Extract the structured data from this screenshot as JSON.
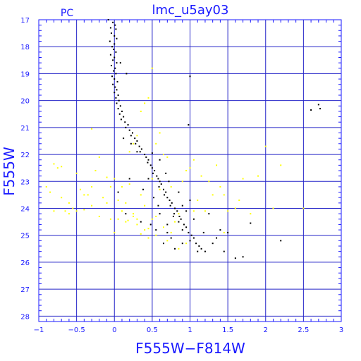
{
  "chart_data": {
    "type": "scatter",
    "title": "lmc_u5ay03",
    "corner_label": "PC",
    "xlabel": "F555W−F814W",
    "ylabel": "F555W",
    "xlim": [
      -1,
      3
    ],
    "ylim": [
      28.2,
      17
    ],
    "y_inverted": true,
    "grid": true,
    "xticks": [
      -1,
      -0.5,
      0,
      0.5,
      1,
      1.5,
      2,
      2.5,
      3
    ],
    "xtick_labels": [
      "−1",
      "−0.5",
      "0",
      "0.5",
      "1",
      "1.5",
      "2",
      "2.5",
      "3"
    ],
    "yticks": [
      17,
      18,
      19,
      20,
      21,
      22,
      23,
      24,
      25,
      26,
      27,
      28
    ],
    "ytick_labels": [
      "17",
      "18",
      "19",
      "20",
      "21",
      "22",
      "23",
      "24",
      "25",
      "26",
      "27",
      "28"
    ],
    "colors": {
      "axes": "#1a1aff",
      "grid": "#2424c8",
      "series_black": "#000000",
      "series_yellow": "#ffff00"
    },
    "series": [
      {
        "color": "#000000",
        "points": [
          [
            -0.08,
            17.0
          ],
          [
            -0.02,
            17.1
          ],
          [
            0.01,
            17.2
          ],
          [
            -0.05,
            17.3
          ],
          [
            0.02,
            17.35
          ],
          [
            -0.04,
            17.5
          ],
          [
            0.0,
            17.6
          ],
          [
            0.03,
            17.7
          ],
          [
            -0.06,
            17.8
          ],
          [
            0.0,
            17.9
          ],
          [
            -0.03,
            18.0
          ],
          [
            -0.01,
            18.1
          ],
          [
            0.02,
            18.2
          ],
          [
            -0.05,
            18.3
          ],
          [
            0.0,
            18.4
          ],
          [
            -0.02,
            18.5
          ],
          [
            0.03,
            18.6
          ],
          [
            -0.04,
            18.7
          ],
          [
            0.01,
            18.8
          ],
          [
            -0.01,
            18.9
          ],
          [
            0.02,
            19.0
          ],
          [
            -0.03,
            19.1
          ],
          [
            0.0,
            19.2
          ],
          [
            0.04,
            19.3
          ],
          [
            -0.02,
            19.4
          ],
          [
            0.01,
            19.5
          ],
          [
            0.03,
            19.6
          ],
          [
            0.0,
            19.7
          ],
          [
            0.05,
            19.8
          ],
          [
            0.02,
            19.9
          ],
          [
            0.06,
            20.0
          ],
          [
            0.03,
            20.1
          ],
          [
            0.08,
            20.2
          ],
          [
            0.05,
            20.3
          ],
          [
            0.1,
            20.4
          ],
          [
            0.07,
            20.5
          ],
          [
            0.12,
            20.6
          ],
          [
            0.09,
            20.7
          ],
          [
            0.14,
            20.8
          ],
          [
            0.18,
            20.9
          ],
          [
            0.15,
            21.0
          ],
          [
            0.2,
            21.1
          ],
          [
            0.24,
            21.2
          ],
          [
            0.22,
            21.3
          ],
          [
            0.27,
            21.4
          ],
          [
            0.3,
            21.5
          ],
          [
            0.28,
            21.6
          ],
          [
            0.33,
            21.7
          ],
          [
            0.36,
            21.8
          ],
          [
            0.34,
            21.9
          ],
          [
            0.4,
            22.0
          ],
          [
            0.42,
            22.1
          ],
          [
            0.45,
            22.2
          ],
          [
            0.44,
            22.3
          ],
          [
            0.48,
            22.4
          ],
          [
            0.5,
            22.5
          ],
          [
            0.53,
            22.6
          ],
          [
            0.51,
            22.7
          ],
          [
            0.56,
            22.8
          ],
          [
            0.58,
            22.9
          ],
          [
            0.6,
            23.0
          ],
          [
            0.62,
            23.1
          ],
          [
            0.59,
            23.2
          ],
          [
            0.65,
            23.3
          ],
          [
            0.68,
            23.4
          ],
          [
            0.66,
            23.5
          ],
          [
            0.7,
            23.6
          ],
          [
            0.73,
            23.7
          ],
          [
            0.76,
            23.8
          ],
          [
            0.74,
            23.9
          ],
          [
            0.8,
            24.0
          ],
          [
            0.83,
            24.1
          ],
          [
            0.79,
            24.2
          ],
          [
            0.86,
            24.3
          ],
          [
            0.88,
            24.4
          ],
          [
            0.85,
            24.5
          ],
          [
            0.92,
            24.6
          ],
          [
            0.95,
            24.7
          ],
          [
            0.9,
            24.8
          ],
          [
            0.98,
            24.9
          ],
          [
            1.02,
            25.0
          ],
          [
            1.05,
            25.1
          ],
          [
            1.0,
            25.2
          ],
          [
            1.08,
            25.3
          ],
          [
            1.12,
            25.4
          ],
          [
            1.15,
            25.5
          ],
          [
            1.1,
            25.6
          ],
          [
            1.2,
            25.6
          ],
          [
            0.6,
            24.2
          ],
          [
            0.7,
            24.6
          ],
          [
            0.75,
            25.1
          ],
          [
            0.55,
            24.8
          ],
          [
            0.65,
            25.3
          ],
          [
            0.8,
            25.5
          ],
          [
            0.72,
            23.0
          ],
          [
            0.52,
            23.6
          ],
          [
            0.9,
            23.9
          ],
          [
            1.25,
            24.2
          ],
          [
            1.3,
            25.3
          ],
          [
            1.35,
            25.1
          ],
          [
            1.4,
            24.8
          ],
          [
            1.45,
            25.6
          ],
          [
            1.5,
            24.9
          ],
          [
            1.6,
            25.85
          ],
          [
            1.7,
            25.8
          ],
          [
            1.8,
            24.55
          ],
          [
            0.45,
            22.9
          ],
          [
            0.38,
            23.3
          ],
          [
            0.3,
            21.9
          ],
          [
            0.22,
            21.6
          ],
          [
            0.12,
            21.4
          ],
          [
            0.5,
            21.95
          ],
          [
            0.6,
            22.2
          ],
          [
            0.68,
            22.7
          ],
          [
            0.85,
            23.4
          ],
          [
            0.95,
            24.1
          ],
          [
            1.05,
            24.4
          ],
          [
            1.18,
            24.9
          ],
          [
            1.0,
            23.7
          ],
          [
            0.58,
            23.9
          ],
          [
            0.48,
            24.6
          ],
          [
            0.78,
            24.3
          ],
          [
            0.9,
            25.3
          ],
          [
            0.7,
            24.9
          ],
          [
            0.35,
            24.5
          ],
          [
            0.2,
            22.9
          ],
          [
            0.15,
            24.2
          ],
          [
            0.05,
            23.4
          ],
          [
            0.98,
            20.9
          ],
          [
            1.0,
            19.1
          ],
          [
            0.16,
            19.0
          ],
          [
            0.08,
            18.6
          ],
          [
            2.6,
            20.35
          ],
          [
            2.72,
            20.3
          ],
          [
            2.2,
            25.2
          ],
          [
            2.7,
            20.15
          ]
        ]
      },
      {
        "color": "#ffff00",
        "points": [
          [
            -0.9,
            23.2
          ],
          [
            -0.85,
            23.4
          ],
          [
            -0.8,
            22.35
          ],
          [
            -0.75,
            22.5
          ],
          [
            -0.7,
            22.45
          ],
          [
            -0.65,
            24.1
          ],
          [
            -0.6,
            23.8
          ],
          [
            -0.55,
            24.0
          ],
          [
            -0.5,
            22.7
          ],
          [
            -0.45,
            23.3
          ],
          [
            -0.4,
            24.05
          ],
          [
            -0.35,
            23.5
          ],
          [
            -0.3,
            23.2
          ],
          [
            -0.25,
            22.6
          ],
          [
            -0.2,
            24.3
          ],
          [
            -0.15,
            23.6
          ],
          [
            -0.1,
            23.8
          ],
          [
            -0.05,
            24.4
          ],
          [
            0.0,
            22.9
          ],
          [
            0.05,
            23.7
          ],
          [
            0.1,
            24.1
          ],
          [
            0.15,
            24.5
          ],
          [
            0.2,
            23.1
          ],
          [
            0.25,
            24.3
          ],
          [
            0.3,
            24.6
          ],
          [
            0.35,
            23.5
          ],
          [
            0.4,
            24.8
          ],
          [
            0.45,
            25.1
          ],
          [
            0.5,
            24.4
          ],
          [
            0.55,
            25.0
          ],
          [
            0.6,
            23.3
          ],
          [
            0.65,
            24.7
          ],
          [
            0.7,
            25.2
          ],
          [
            0.75,
            24.9
          ],
          [
            0.8,
            24.5
          ],
          [
            0.85,
            25.5
          ],
          [
            0.9,
            23.0
          ],
          [
            0.95,
            22.6
          ],
          [
            1.0,
            22.5
          ],
          [
            1.05,
            22.2
          ],
          [
            1.1,
            23.7
          ],
          [
            1.15,
            22.8
          ],
          [
            1.2,
            24.1
          ],
          [
            1.25,
            23.0
          ],
          [
            1.3,
            23.5
          ],
          [
            1.35,
            22.4
          ],
          [
            1.4,
            23.2
          ],
          [
            1.45,
            23.5
          ],
          [
            1.5,
            24.1
          ],
          [
            1.6,
            24.0
          ],
          [
            1.65,
            23.7
          ],
          [
            1.7,
            22.9
          ],
          [
            1.8,
            24.2
          ],
          [
            1.9,
            22.8
          ],
          [
            2.0,
            21.7
          ],
          [
            2.1,
            24.0
          ],
          [
            2.2,
            22.4
          ],
          [
            2.5,
            24.0
          ],
          [
            -0.8,
            24.1
          ],
          [
            -0.7,
            23.6
          ],
          [
            -0.6,
            24.2
          ],
          [
            -0.3,
            23.9
          ],
          [
            -0.2,
            22.1
          ],
          [
            -0.1,
            22.85
          ],
          [
            0.0,
            24.9
          ],
          [
            0.1,
            23.2
          ],
          [
            0.3,
            24.4
          ],
          [
            0.4,
            23.9
          ],
          [
            0.5,
            22.9
          ],
          [
            0.2,
            21.9
          ],
          [
            0.3,
            21.3
          ],
          [
            0.35,
            20.4
          ],
          [
            0.4,
            20.1
          ],
          [
            0.45,
            19.9
          ],
          [
            0.5,
            18.8
          ],
          [
            0.55,
            21.6
          ],
          [
            0.6,
            21.2
          ],
          [
            0.25,
            21.6
          ],
          [
            -0.3,
            21.05
          ],
          [
            0.65,
            22.0
          ],
          [
            0.7,
            22.1
          ],
          [
            0.15,
            23.8
          ],
          [
            0.05,
            24.4
          ],
          [
            -0.05,
            23.2
          ],
          [
            0.35,
            24.95
          ],
          [
            0.25,
            24.2
          ],
          [
            -0.4,
            23.5
          ],
          [
            -0.5,
            24.1
          ],
          [
            0.55,
            24.3
          ],
          [
            0.45,
            24.75
          ],
          [
            0.85,
            24.2
          ],
          [
            0.75,
            23.2
          ],
          [
            1.05,
            24.1
          ],
          [
            1.45,
            24.9
          ],
          [
            0.95,
            25.3
          ],
          [
            0.18,
            24.45
          ]
        ]
      }
    ]
  }
}
